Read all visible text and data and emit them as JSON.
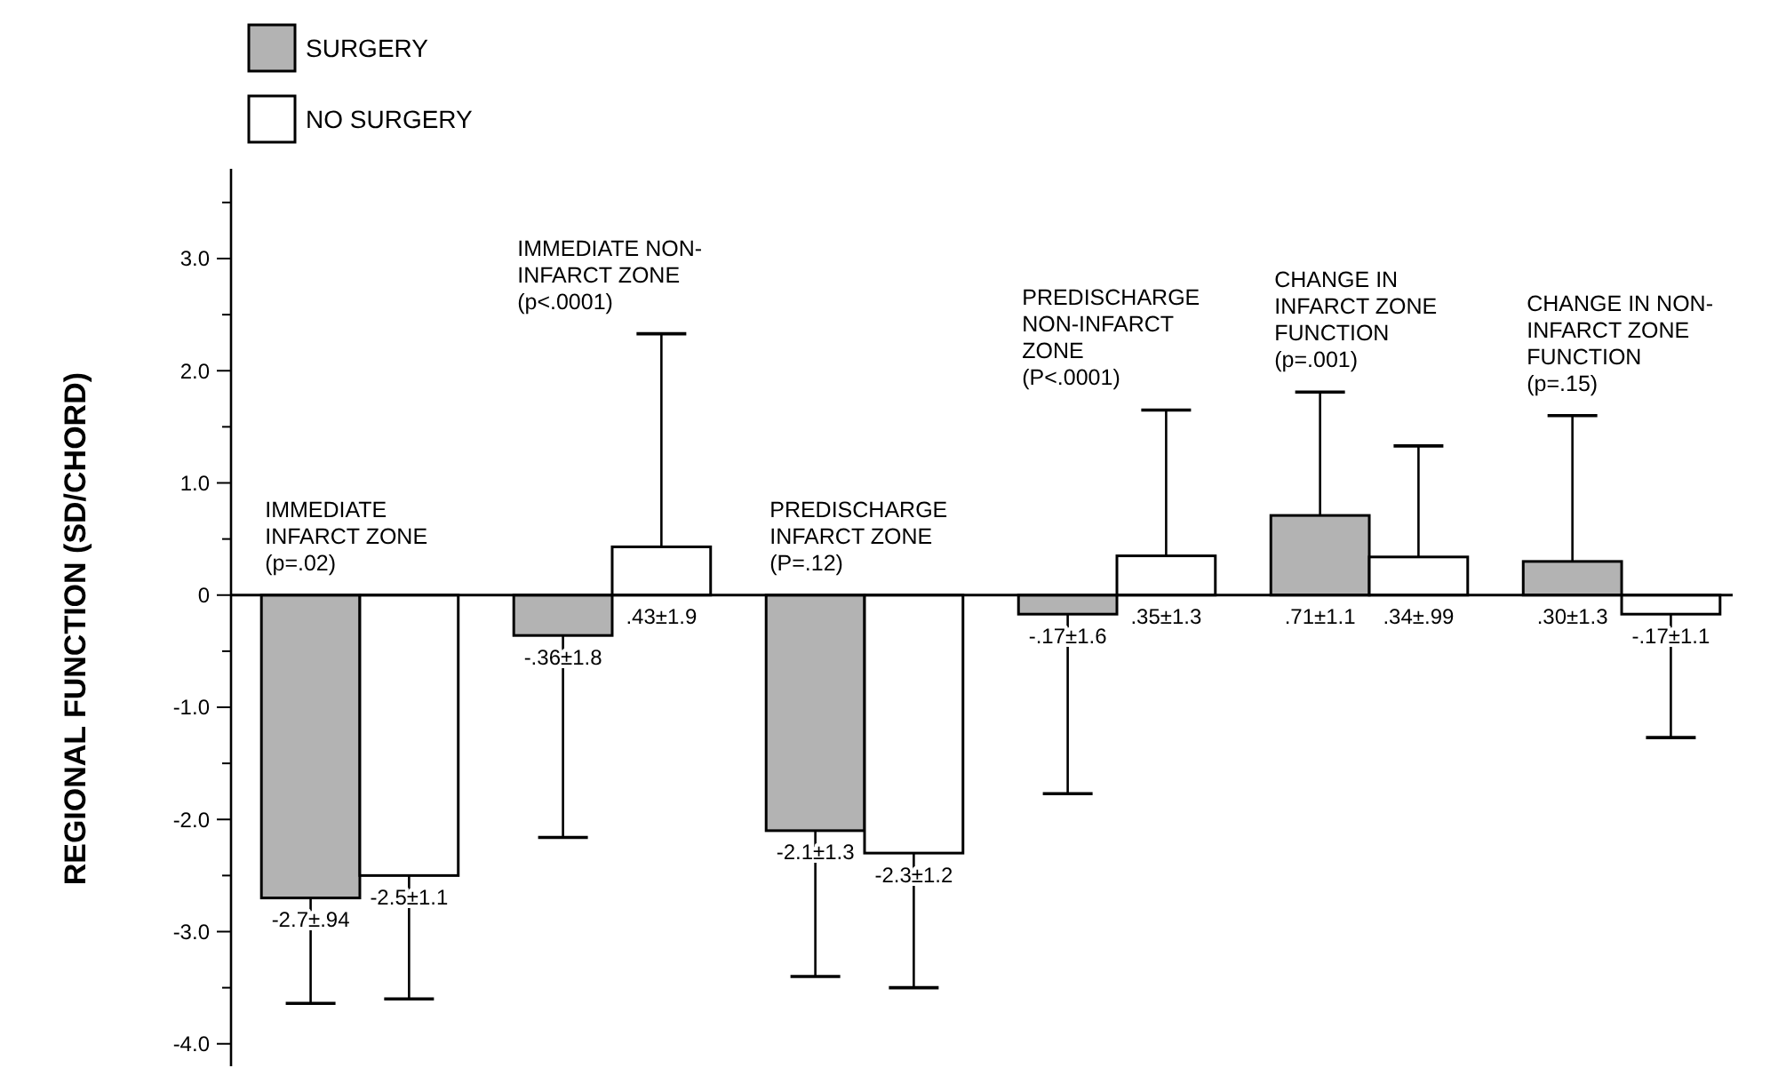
{
  "chart_data": {
    "type": "bar",
    "ylabel": "REGIONAL FUNCTION (SD/CHORD)",
    "categories": [
      "IMMEDIATE INFARCT ZONE (p=.02)",
      "IMMEDIATE NON-INFARCT ZONE (p<.0001)",
      "PREDISCHARGE INFARCT ZONE (P=.12)",
      "PREDISCHARGE NON-INFARCT ZONE (P<.0001)",
      "CHANGE IN INFARCT ZONE FUNCTION (p=.001)",
      "CHANGE IN NON-INFARCT ZONE FUNCTION (p=.15)"
    ],
    "series": [
      {
        "name": "SURGERY",
        "color": "#b3b3b3",
        "values": [
          -2.7,
          -0.36,
          -2.1,
          -0.17,
          0.71,
          0.3
        ],
        "errors": [
          [
            -3.64,
            -2.7
          ],
          [
            -2.16,
            -0.36
          ],
          [
            -3.4,
            -2.1
          ],
          [
            -1.77,
            -0.17
          ],
          [
            0.71,
            1.81
          ],
          [
            0.3,
            1.6
          ]
        ],
        "value_labels": [
          "-2.7±.94",
          "-.36±1.8",
          "-2.1±1.3",
          "-.17±1.6",
          ".71±1.1",
          ".30±1.3"
        ]
      },
      {
        "name": "NO SURGERY",
        "color": "#ffffff",
        "values": [
          -2.5,
          0.43,
          -2.3,
          0.35,
          0.34,
          -0.17
        ],
        "errors": [
          [
            -3.6,
            -2.5
          ],
          [
            0.43,
            2.33
          ],
          [
            -3.5,
            -2.3
          ],
          [
            0.35,
            1.65
          ],
          [
            0.34,
            1.33
          ],
          [
            -1.27,
            -0.17
          ]
        ],
        "value_labels": [
          "-2.5±1.1",
          ".43±1.9",
          "-2.3±1.2",
          ".35±1.3",
          ".34±.99",
          "-.17±1.1"
        ]
      }
    ],
    "ylim": [
      -4.2,
      3.8
    ],
    "yticks": [
      {
        "value": -4,
        "label": "-4.0"
      },
      {
        "value": -3.5,
        "label": null
      },
      {
        "value": -3,
        "label": "-3.0"
      },
      {
        "value": -2.5,
        "label": null
      },
      {
        "value": -2,
        "label": "-2.0"
      },
      {
        "value": -1.5,
        "label": null
      },
      {
        "value": -1,
        "label": "-1.0"
      },
      {
        "value": -0.5,
        "label": null
      },
      0,
      {
        "value": 0.5,
        "label": null
      },
      {
        "value": 1,
        "label": "1.0"
      },
      {
        "value": 1.5,
        "label": null
      },
      {
        "value": 2,
        "label": "2.0"
      },
      {
        "value": 2.5,
        "label": null
      },
      {
        "value": 3,
        "label": "3.0"
      },
      {
        "value": 3.5,
        "label": null
      }
    ],
    "legend": "top left",
    "grid": false
  }
}
